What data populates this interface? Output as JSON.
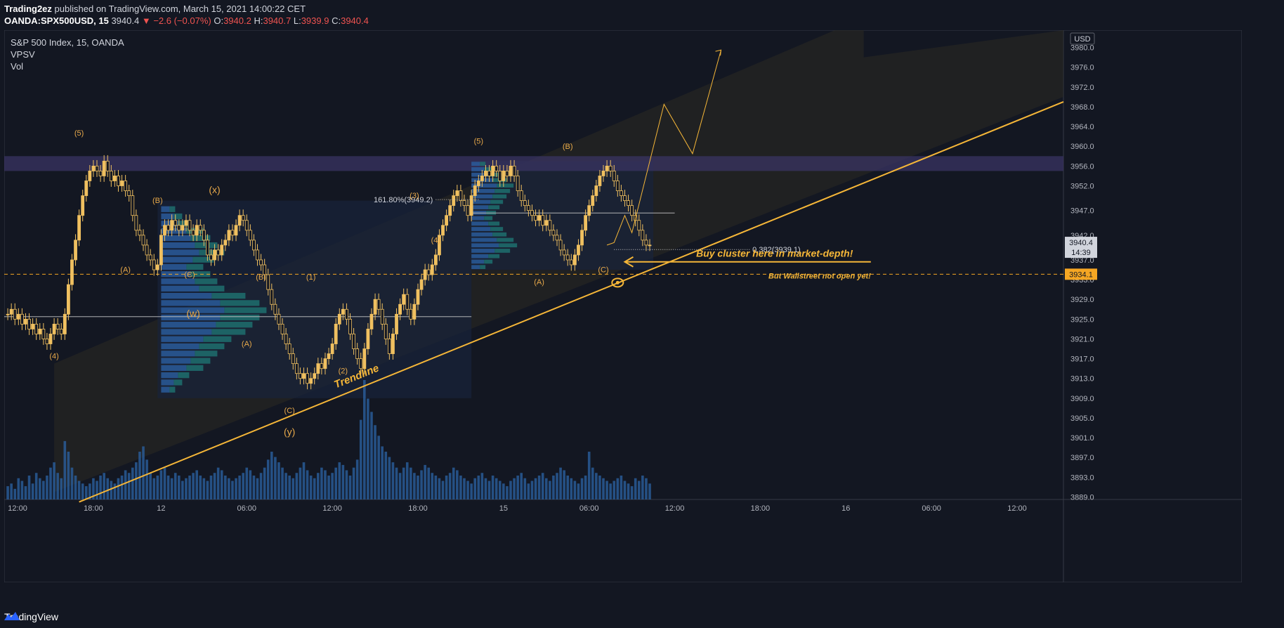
{
  "header": {
    "author": "Trading2ez",
    "published": "published on TradingView.com, March 15, 2021 14:00:22 CET",
    "symbol": "OANDA:SPX500USD, 15",
    "last": "3940.4",
    "change": "▼ −2.6 (−0.07%)",
    "o_label": "O:",
    "o": "3940.2",
    "h_label": "H:",
    "h": "3940.7",
    "l_label": "L:",
    "l": "3939.9",
    "c_label": "C:",
    "c": "3940.4"
  },
  "legend": {
    "title": "S&P 500 Index, 15, OANDA",
    "ind1": "VPSV",
    "ind2": "Vol"
  },
  "footer": {
    "brand": "TradingView",
    "logo_icon": "tradingview-logo-icon"
  },
  "chart_data": {
    "type": "candlestick",
    "currency": "USD",
    "y_ticks": [
      "3980.0",
      "3976.0",
      "3972.0",
      "3968.0",
      "3964.0",
      "3960.0",
      "3956.0",
      "3952.0",
      "3947.0",
      "3942.0",
      "3937.0",
      "3933.0",
      "3929.0",
      "3925.0",
      "3921.0",
      "3917.0",
      "3913.0",
      "3909.0",
      "3905.0",
      "3901.0",
      "3897.0",
      "3893.0",
      "3889.0"
    ],
    "ylim": [
      3888.5,
      3983.5
    ],
    "x_ticks": [
      {
        "label": "12:00",
        "t": 0
      },
      {
        "label": "18:00",
        "t": 24
      },
      {
        "label": "12",
        "t": 43
      },
      {
        "label": "06:00",
        "t": 67
      },
      {
        "label": "12:00",
        "t": 91
      },
      {
        "label": "18:00",
        "t": 115
      },
      {
        "label": "15",
        "t": 139
      },
      {
        "label": "06:00",
        "t": 163
      },
      {
        "label": "12:00",
        "t": 187
      },
      {
        "label": "18:00",
        "t": 211
      },
      {
        "label": "16",
        "t": 235
      },
      {
        "label": "06:00",
        "t": 259
      },
      {
        "label": "12:00",
        "t": 283
      }
    ],
    "x_range": [
      -1,
      296
    ],
    "closes": [
      3926,
      3927,
      3925,
      3926,
      3924,
      3925,
      3923,
      3924,
      3922,
      3923,
      3921,
      3920,
      3922,
      3924,
      3923,
      3922,
      3926,
      3932,
      3937,
      3941,
      3946,
      3950,
      3953,
      3955,
      3956,
      3955,
      3954,
      3957,
      3955,
      3953,
      3954,
      3952,
      3953,
      3951,
      3950,
      3946,
      3943,
      3942,
      3940,
      3938,
      3937,
      3935,
      3936,
      3942,
      3944,
      3943,
      3945,
      3944,
      3943,
      3944,
      3945,
      3943,
      3942,
      3944,
      3943,
      3941,
      3938,
      3937,
      3939,
      3938,
      3940,
      3941,
      3943,
      3942,
      3944,
      3946,
      3945,
      3943,
      3941,
      3939,
      3937,
      3936,
      3934,
      3931,
      3928,
      3926,
      3924,
      3922,
      3920,
      3918,
      3916,
      3914,
      3913,
      3914,
      3912,
      3913,
      3914,
      3916,
      3915,
      3917,
      3918,
      3920,
      3924,
      3926,
      3927,
      3925,
      3922,
      3919,
      3917,
      3915,
      3919,
      3923,
      3926,
      3929,
      3927,
      3924,
      3921,
      3918,
      3922,
      3926,
      3928,
      3930,
      3927,
      3925,
      3928,
      3931,
      3933,
      3935,
      3934,
      3936,
      3938,
      3942,
      3944,
      3946,
      3948,
      3950,
      3951,
      3949,
      3948,
      3946,
      3950,
      3952,
      3953,
      3954,
      3955,
      3954,
      3956,
      3955,
      3953,
      3955,
      3954,
      3956,
      3954,
      3951,
      3949,
      3948,
      3947,
      3946,
      3945,
      3946,
      3944,
      3945,
      3943,
      3942,
      3941,
      3939,
      3938,
      3937,
      3936,
      3938,
      3940,
      3943,
      3946,
      3948,
      3950,
      3952,
      3954,
      3955,
      3956,
      3955,
      3953,
      3951,
      3950,
      3949,
      3948,
      3946,
      3945,
      3943,
      3941,
      3940,
      3940
    ],
    "volumes": [
      5,
      6,
      4,
      8,
      7,
      5,
      9,
      6,
      10,
      8,
      7,
      9,
      12,
      14,
      10,
      8,
      22,
      18,
      12,
      9,
      7,
      6,
      5,
      6,
      8,
      7,
      9,
      10,
      8,
      7,
      6,
      8,
      9,
      11,
      10,
      12,
      14,
      18,
      20,
      15,
      10,
      8,
      9,
      11,
      12,
      9,
      8,
      10,
      9,
      7,
      8,
      9,
      10,
      11,
      9,
      8,
      7,
      9,
      10,
      12,
      11,
      9,
      8,
      7,
      8,
      9,
      10,
      12,
      11,
      9,
      8,
      10,
      12,
      15,
      18,
      16,
      14,
      12,
      10,
      9,
      8,
      10,
      12,
      14,
      11,
      9,
      8,
      10,
      12,
      11,
      9,
      10,
      12,
      14,
      13,
      11,
      9,
      12,
      15,
      30,
      45,
      38,
      33,
      28,
      24,
      20,
      18,
      16,
      14,
      12,
      10,
      12,
      14,
      12,
      10,
      9,
      11,
      13,
      12,
      10,
      9,
      8,
      7,
      9,
      10,
      12,
      11,
      9,
      8,
      7,
      6,
      8,
      9,
      10,
      8,
      7,
      9,
      8,
      7,
      6,
      5,
      7,
      8,
      9,
      10,
      8,
      6,
      7,
      8,
      9,
      10,
      8,
      7,
      9,
      10,
      12,
      11,
      9,
      8,
      7,
      6,
      8,
      9,
      18,
      12,
      10,
      9,
      8,
      7,
      6,
      7,
      8,
      9,
      7,
      6,
      5,
      8,
      7,
      9,
      8,
      6
    ],
    "zones": {
      "resistance_band": [
        3955,
        3958
      ],
      "support_line": 3934.1,
      "poc_left": 3925.5,
      "poc_right": 3946.5
    },
    "fib_labels": [
      "161.80%(3949.2)",
      "0.382(3939.1)"
    ],
    "wave_labels": [
      {
        "text": "(5)",
        "t": 20,
        "y": 3962.2
      },
      {
        "text": "(4)",
        "t": 13,
        "y": 3917.0
      },
      {
        "text": "(A)",
        "t": 33,
        "y": 3934.5
      },
      {
        "text": "(B)",
        "t": 42,
        "y": 3948.5
      },
      {
        "text": "(C)",
        "t": 51,
        "y": 3933.5
      },
      {
        "text": "(x)",
        "t": 58,
        "y": 3950.5
      },
      {
        "text": "(w)",
        "t": 52,
        "y": 3925.5
      },
      {
        "text": "(B)",
        "t": 71,
        "y": 3933.0
      },
      {
        "text": "(A)",
        "t": 67,
        "y": 3919.5
      },
      {
        "text": "(1)",
        "t": 85,
        "y": 3933.0
      },
      {
        "text": "(C)",
        "t": 79,
        "y": 3906.0
      },
      {
        "text": "(y)",
        "t": 79,
        "y": 3901.5
      },
      {
        "text": "(2)",
        "t": 94,
        "y": 3914.0
      },
      {
        "text": "(3)",
        "t": 114,
        "y": 3949.5
      },
      {
        "text": "(4)",
        "t": 120,
        "y": 3940.5
      },
      {
        "text": "(5)",
        "t": 132,
        "y": 3960.5
      },
      {
        "text": "(B)",
        "t": 157,
        "y": 3959.5
      },
      {
        "text": "(A)",
        "t": 149,
        "y": 3932.0
      },
      {
        "text": "(C)",
        "t": 167,
        "y": 3934.5
      }
    ],
    "annotations": {
      "trendline_label": "Trendline",
      "callout": "Buy cluster here in market-depth!",
      "callout_note": "But Wallstreet not open yet!"
    },
    "price_tags": [
      {
        "value": "3940.4",
        "sub": "14:39",
        "kind": "last"
      },
      {
        "value": "3934.1",
        "kind": "line"
      }
    ],
    "projection": [
      [
        168,
        3940
      ],
      [
        170,
        3940.5
      ],
      [
        173,
        3946
      ],
      [
        175,
        3942.5
      ],
      [
        184,
        3968.5
      ],
      [
        192,
        3958.5
      ],
      [
        200,
        3979.5
      ]
    ],
    "colors": {
      "background": "#131722",
      "candle": "#f0c060",
      "wave_label": "#e8a94a",
      "trend": "#f5b638",
      "volume": "#2a5f9e",
      "profile_blue": "#2a5a9a",
      "profile_teal": "#1f6e6e",
      "resistance": "#3a3463",
      "tag_last": "#d1d4dc",
      "tag_line": "#f5a623"
    }
  }
}
